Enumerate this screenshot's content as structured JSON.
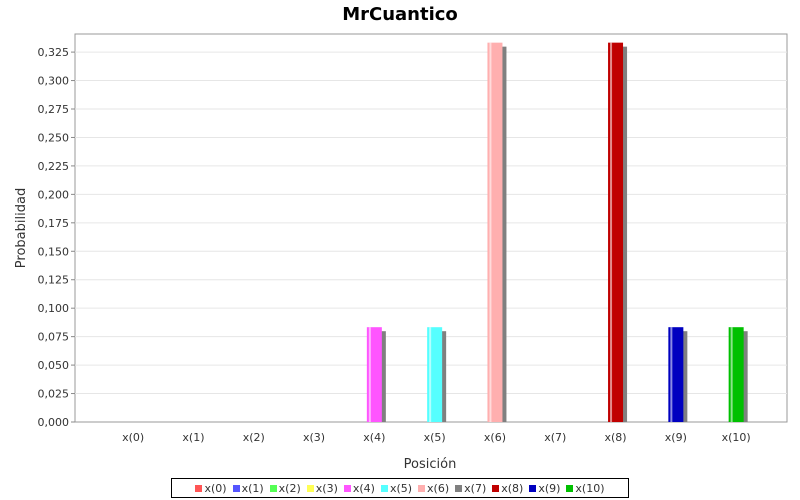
{
  "chart_data": {
    "type": "bar",
    "title": "MrCuantico",
    "xlabel": "Posición",
    "ylabel": "Probabilidad",
    "ylim": [
      0,
      0.3409
    ],
    "yticks": [
      "0,000",
      "0,025",
      "0,050",
      "0,075",
      "0,100",
      "0,125",
      "0,150",
      "0,175",
      "0,200",
      "0,225",
      "0,250",
      "0,275",
      "0,300",
      "0,325"
    ],
    "grid": true,
    "legend_position": "bottom",
    "categories": [
      "x(0)",
      "x(1)",
      "x(2)",
      "x(3)",
      "x(4)",
      "x(5)",
      "x(6)",
      "x(7)",
      "x(8)",
      "x(9)",
      "x(10)"
    ],
    "series": [
      {
        "name": "x(0)",
        "color": "#ff5555",
        "values": [
          0,
          0,
          0,
          0,
          0,
          0,
          0,
          0,
          0,
          0,
          0
        ]
      },
      {
        "name": "x(1)",
        "color": "#5555ff",
        "values": [
          0,
          0,
          0,
          0,
          0,
          0,
          0,
          0,
          0,
          0,
          0
        ]
      },
      {
        "name": "x(2)",
        "color": "#55ff55",
        "values": [
          0,
          0,
          0,
          0,
          0,
          0,
          0,
          0,
          0,
          0,
          0
        ]
      },
      {
        "name": "x(3)",
        "color": "#ffff55",
        "values": [
          0,
          0,
          0,
          0,
          0,
          0,
          0,
          0,
          0,
          0,
          0
        ]
      },
      {
        "name": "x(4)",
        "color": "#ff55ff",
        "values": [
          0,
          0,
          0,
          0,
          0.0833,
          0,
          0,
          0,
          0,
          0,
          0
        ]
      },
      {
        "name": "x(5)",
        "color": "#55ffff",
        "values": [
          0,
          0,
          0,
          0,
          0,
          0.0833,
          0,
          0,
          0,
          0,
          0
        ]
      },
      {
        "name": "x(6)",
        "color": "#ffafaf",
        "values": [
          0,
          0,
          0,
          0,
          0,
          0,
          0.3333,
          0,
          0,
          0,
          0
        ]
      },
      {
        "name": "x(7)",
        "color": "#808080",
        "values": [
          0,
          0,
          0,
          0,
          0,
          0,
          0,
          0,
          0,
          0,
          0
        ]
      },
      {
        "name": "x(8)",
        "color": "#c00000",
        "values": [
          0,
          0,
          0,
          0,
          0,
          0,
          0,
          0,
          0.3333,
          0,
          0
        ]
      },
      {
        "name": "x(9)",
        "color": "#0000c0",
        "values": [
          0,
          0,
          0,
          0,
          0,
          0,
          0,
          0,
          0,
          0.0833,
          0
        ]
      },
      {
        "name": "x(10)",
        "color": "#00c000",
        "values": [
          0,
          0,
          0,
          0,
          0,
          0,
          0,
          0,
          0,
          0,
          0.0833
        ]
      }
    ]
  }
}
